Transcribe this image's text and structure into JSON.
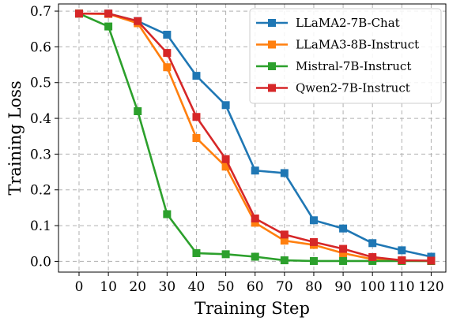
{
  "chart_data": {
    "type": "line",
    "xlabel": "Training Step",
    "ylabel": "Training Loss",
    "xlim": [
      -7,
      125
    ],
    "ylim": [
      -0.03,
      0.72
    ],
    "x_ticks": [
      0,
      10,
      20,
      30,
      40,
      50,
      60,
      70,
      80,
      90,
      100,
      110,
      120
    ],
    "y_ticks": [
      0.0,
      0.1,
      0.2,
      0.3,
      0.4,
      0.5,
      0.6,
      0.7
    ],
    "y_tick_labels": [
      "0.0",
      "0.1",
      "0.2",
      "0.3",
      "0.4",
      "0.5",
      "0.6",
      "0.7"
    ],
    "grid": true,
    "legend_position": "top-right",
    "x": [
      0,
      10,
      20,
      30,
      40,
      50,
      60,
      70,
      80,
      90,
      100,
      110,
      120
    ],
    "series": [
      {
        "name": "LLaMA2-7B-Chat",
        "color": "#1f77b4",
        "values": [
          0.693,
          0.693,
          0.672,
          0.634,
          0.519,
          0.437,
          0.254,
          0.247,
          0.115,
          0.092,
          0.051,
          0.031,
          0.013
        ]
      },
      {
        "name": "LLaMA3-8B-Instruct",
        "color": "#ff7f0e",
        "values": [
          0.693,
          0.692,
          0.666,
          0.543,
          0.345,
          0.265,
          0.108,
          0.058,
          0.046,
          0.023,
          0.006,
          0.002,
          0.001
        ]
      },
      {
        "name": "Mistral-7B-Instruct",
        "color": "#2ca02c",
        "values": [
          0.693,
          0.657,
          0.42,
          0.132,
          0.023,
          0.02,
          0.013,
          0.003,
          0.001,
          0.001,
          0.001,
          0.001,
          0.001
        ]
      },
      {
        "name": "Qwen2-7B-Instruct",
        "color": "#d62728",
        "values": [
          0.693,
          0.693,
          0.672,
          0.583,
          0.404,
          0.286,
          0.12,
          0.075,
          0.054,
          0.035,
          0.012,
          0.003,
          0.002
        ]
      }
    ]
  }
}
